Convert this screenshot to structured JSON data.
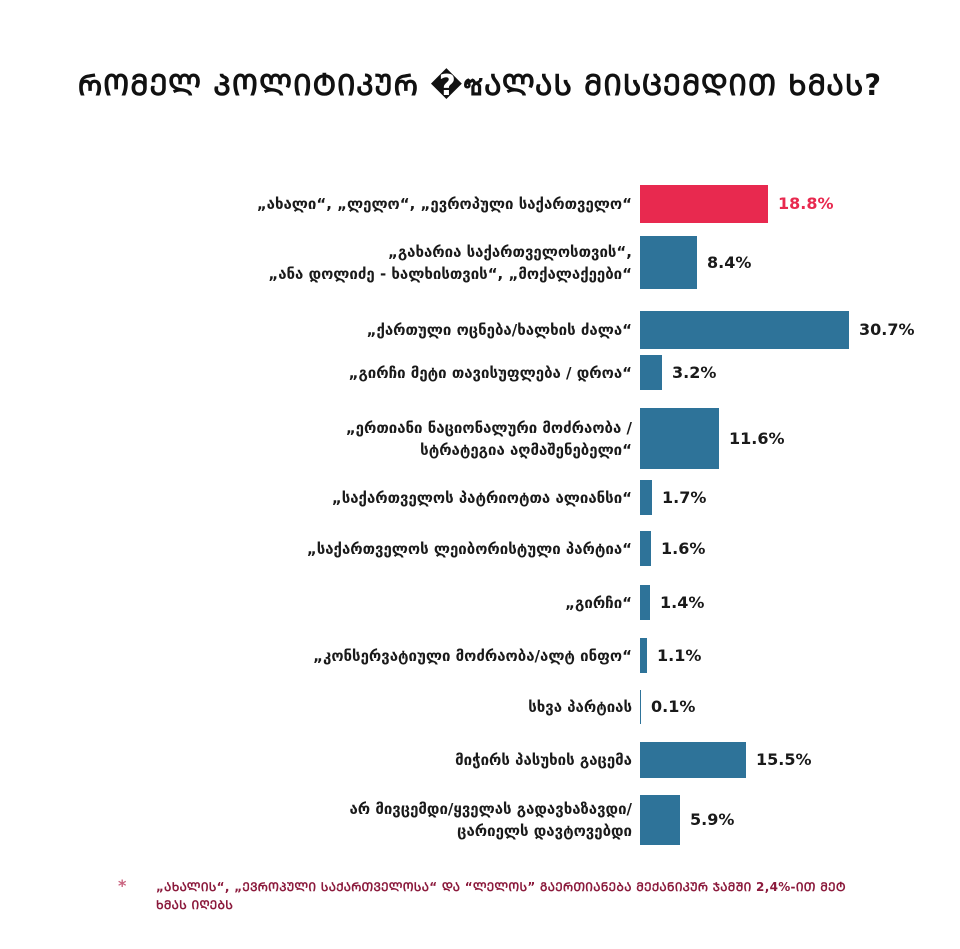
{
  "chart_data": {
    "type": "bar",
    "orientation": "horizontal",
    "title": "ᲠᲝᲛᲔᲚ ᲞᲝᲚᲘᲢᲘᲙᲣᲠ �ซᲐᲚᲐᲡ ᲛᲘᲡᲪᲔᲛᲓᲘᲗ ᲮᲛᲐᲡ?",
    "categories": [
      [
        "„ახალი“, „ლელო“, „ევროპული საქართველო“"
      ],
      [
        "„გახარია საქართველოსთვის“,",
        "„ანა დოლიძე - ხალხისთვის“, „მოქალაქეები“"
      ],
      [
        "„ქართული ოცნება/ხალხის ძალა“"
      ],
      [
        "„გირჩი მეტი თავისუფლება / დროა“"
      ],
      [
        "„ერთიანი ნაციონალური მოძრაობა /",
        "სტრატეგია აღმაშენებელი“"
      ],
      [
        "„საქართველოს პატრიოტთა ალიანსი“"
      ],
      [
        "„საქართველოს ლეიბორისტული პარტია“"
      ],
      [
        "„გირჩი“"
      ],
      [
        "„კონსერვატიული მოძრაობა/ალტ ინფო“"
      ],
      [
        "სხვა პარტიას"
      ],
      [
        "მიჭირს პასუხის გაცემა"
      ],
      [
        "არ მივცემდი/ყველას გადავხაზავდი/",
        "ცარიელს დავტოვებდი"
      ]
    ],
    "values": [
      18.8,
      8.4,
      30.7,
      3.2,
      11.6,
      1.7,
      1.6,
      1.4,
      1.1,
      0.1,
      15.5,
      5.9
    ],
    "value_labels": [
      "18.8%",
      "8.4%",
      "30.7%",
      "3.2%",
      "11.6%",
      "1.7%",
      "1.6%",
      "1.4%",
      "1.1%",
      "0.1%",
      "15.5%",
      "5.9%"
    ],
    "highlight_index": 0,
    "colors": {
      "default_bar": "#2e7399",
      "highlight_bar": "#e8294f",
      "highlight_label": "#e8294f",
      "label": "#1a1a1a"
    },
    "xlim": [
      0,
      30.7
    ],
    "grid": false,
    "legend": "none"
  },
  "footnote": {
    "marker": "*",
    "text": "„ᲐᲮᲐᲚᲘᲡ“, „ᲔᲕᲠᲝᲞᲣᲚᲘ ᲡᲐᲥᲐᲠᲗᲕᲔᲚᲝᲡᲐ“ ᲓᲐ “ᲚᲔᲚᲝᲡ” ᲒᲐᲔᲠᲗᲘᲐᲜᲔᲑᲐ ᲛᲔᲥᲐᲜᲘᲙᲣᲠ ᲯᲐᲛᲨᲘ 2,4%-ᲘᲗ ᲛᲔᲢ ᲮᲛᲐᲡ ᲘᲦᲔᲑᲡ",
    "color": "#8b1a3c"
  }
}
